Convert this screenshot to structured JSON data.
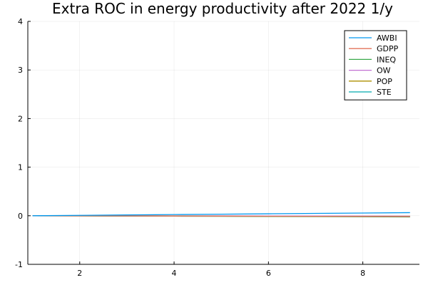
{
  "chart_data": {
    "type": "line",
    "title": "Extra ROC in energy productivity after 2022 1/y",
    "xlabel": "",
    "ylabel": "",
    "xlim": [
      0.9,
      9.2
    ],
    "ylim": [
      -1,
      4
    ],
    "xticks": [
      2,
      4,
      6,
      8
    ],
    "yticks": [
      -1,
      0,
      1,
      2,
      3,
      4
    ],
    "grid": true,
    "legend_position": "top-right",
    "x": [
      1,
      2,
      3,
      4,
      5,
      6,
      7,
      8,
      9
    ],
    "series": [
      {
        "name": "AWBI",
        "color": "#0099f0",
        "values": [
          0,
          0.008,
          0.016,
          0.024,
          0.032,
          0.04,
          0.048,
          0.056,
          0.064
        ]
      },
      {
        "name": "GDPP",
        "color": "#e3735a",
        "values": [
          0,
          -0.002,
          -0.004,
          -0.006,
          -0.008,
          -0.01,
          -0.012,
          -0.014,
          -0.016
        ]
      },
      {
        "name": "INEQ",
        "color": "#3aa94a",
        "values": [
          0,
          -0.003,
          -0.006,
          -0.009,
          -0.012,
          -0.015,
          -0.018,
          -0.021,
          -0.024
        ]
      },
      {
        "name": "OW",
        "color": "#c271d2",
        "values": [
          0,
          -0.001,
          -0.002,
          -0.003,
          -0.004,
          -0.005,
          -0.006,
          -0.007,
          -0.008
        ]
      },
      {
        "name": "POP",
        "color": "#ad8f00",
        "values": [
          0,
          -0.001,
          -0.002,
          -0.003,
          -0.004,
          -0.005,
          -0.006,
          -0.007,
          -0.008
        ]
      },
      {
        "name": "STE",
        "color": "#00aaae",
        "values": [
          0,
          -0.002,
          -0.004,
          -0.006,
          -0.008,
          -0.01,
          -0.012,
          -0.014,
          -0.016
        ]
      }
    ]
  }
}
